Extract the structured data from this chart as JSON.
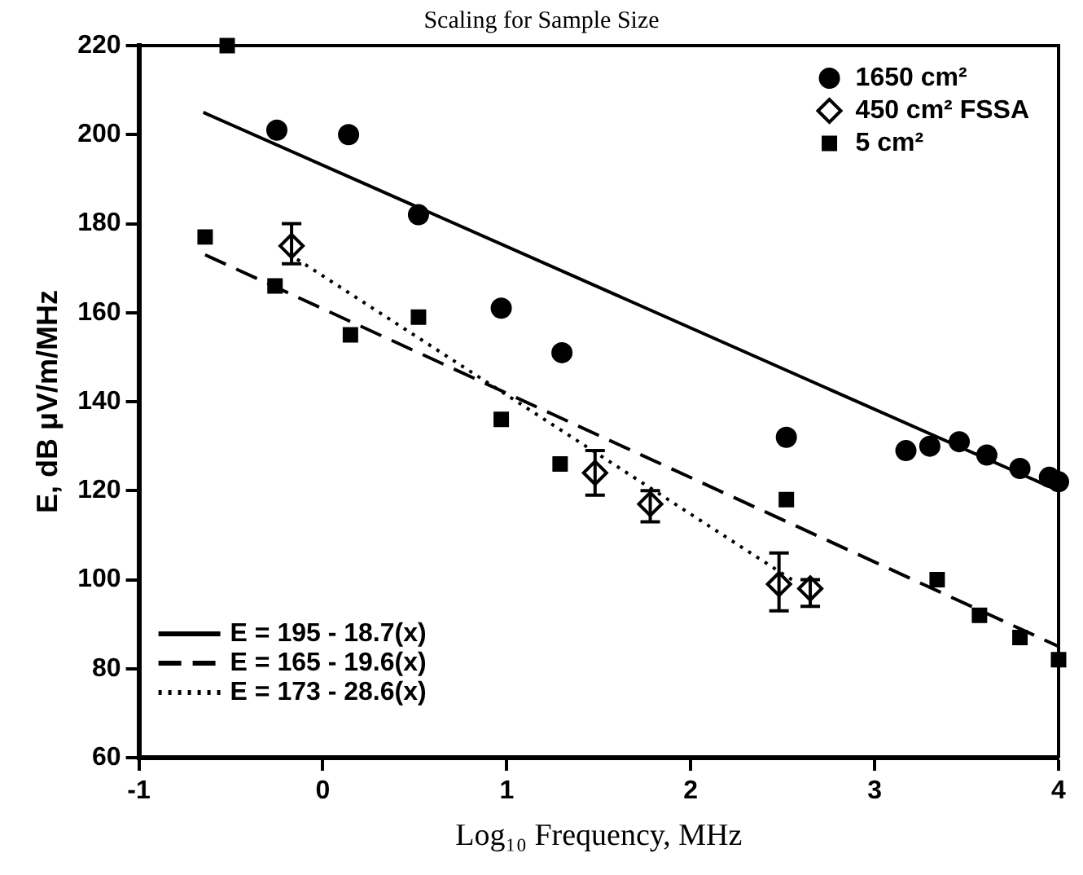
{
  "chart_data": {
    "type": "scatter",
    "title": "Scaling for Sample Size",
    "xlabel": "Log₁₀ Frequency, MHz",
    "ylabel": "E, dB μV/m/MHz",
    "xlim": [
      -1,
      4
    ],
    "xticks": [
      -1,
      0,
      1,
      2,
      3,
      4
    ],
    "ylim": [
      60,
      220
    ],
    "yticks": [
      60,
      80,
      100,
      120,
      140,
      160,
      180,
      200,
      220
    ],
    "grid": false,
    "legend": "top right",
    "series": [
      {
        "name": "1650 cm²",
        "marker": "circle",
        "color": "#000000",
        "x": [
          -0.25,
          0.14,
          0.52,
          0.97,
          1.3,
          2.52,
          3.17,
          3.3,
          3.46,
          3.61,
          3.79,
          3.95,
          4.0
        ],
        "values": [
          201,
          200,
          182,
          161,
          151,
          132,
          129,
          130,
          131,
          128,
          125,
          123,
          122
        ]
      },
      {
        "name": "450 cm² FSSA",
        "marker": "diamond",
        "color": "#000000",
        "x": [
          -0.17,
          1.48,
          1.78,
          2.48,
          2.65
        ],
        "values": [
          175,
          124,
          117,
          99,
          98
        ],
        "errors": [
          [
            171,
            180
          ],
          [
            119,
            129
          ],
          [
            113,
            120
          ],
          [
            93,
            106
          ],
          [
            94,
            100
          ]
        ]
      },
      {
        "name": "5 cm²",
        "marker": "square",
        "color": "#000000",
        "x": [
          -0.52,
          -0.64,
          -0.26,
          0.15,
          0.52,
          0.97,
          1.29,
          2.52,
          3.34,
          3.57,
          3.79,
          4.0
        ],
        "values": [
          220,
          177,
          166,
          155,
          159,
          136,
          126,
          118,
          100,
          92,
          87,
          82
        ]
      },
      {
        "name": "E = 195 - 18.7(x)",
        "type": "line",
        "line_style": "solid",
        "color": "#000000",
        "x": [
          -0.65,
          4
        ],
        "values": [
          205,
          120
        ]
      },
      {
        "name": "E = 165 - 19.6(x)",
        "type": "line",
        "line_style": "dashed",
        "color": "#000000",
        "x": [
          -0.64,
          4
        ],
        "values": [
          173,
          85
        ]
      },
      {
        "name": "E = 173 - 28.6(x)",
        "type": "line",
        "line_style": "dotted",
        "color": "#000000",
        "x": [
          -0.14,
          2.55
        ],
        "values": [
          172,
          100
        ]
      }
    ]
  }
}
